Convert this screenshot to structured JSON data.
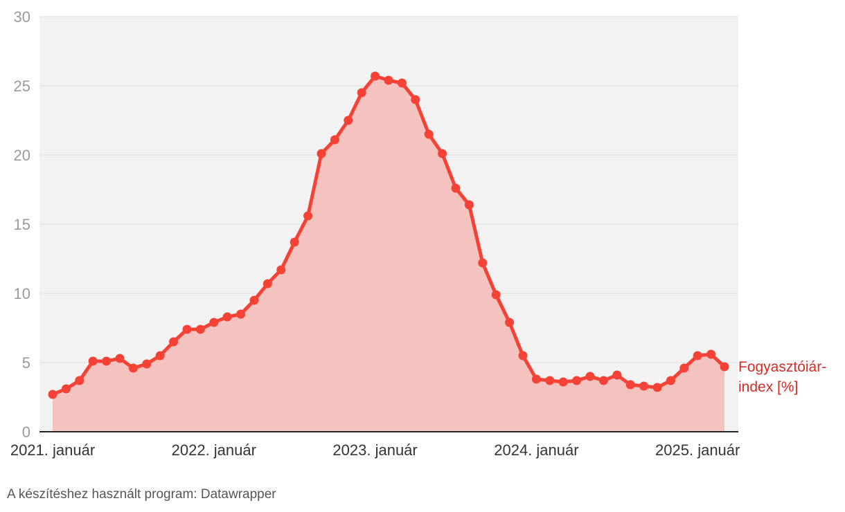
{
  "chart_data": {
    "type": "area",
    "title": "",
    "xlabel": "",
    "ylabel": "",
    "ylim": [
      0,
      30
    ],
    "y_ticks": [
      "0",
      "5",
      "10",
      "15",
      "20",
      "25",
      "30"
    ],
    "x_ticks": [
      "2021. január",
      "2022. január",
      "2023. január",
      "2024. január",
      "2025. január"
    ],
    "grid": true,
    "series": [
      {
        "name": "Fogyasztóiár-index [%]",
        "label_lines": [
          "Fogyasztóiár-",
          "index [%]"
        ],
        "start": "2021-01",
        "values": [
          2.7,
          3.1,
          3.7,
          5.1,
          5.1,
          5.3,
          4.6,
          4.9,
          5.5,
          6.5,
          7.4,
          7.4,
          7.9,
          8.3,
          8.5,
          9.5,
          10.7,
          11.7,
          13.7,
          15.6,
          20.1,
          21.1,
          22.5,
          24.5,
          25.7,
          25.4,
          25.2,
          24.0,
          21.5,
          20.1,
          17.6,
          16.4,
          12.2,
          9.9,
          7.9,
          5.5,
          3.8,
          3.7,
          3.6,
          3.7,
          4.0,
          3.7,
          4.1,
          3.4,
          3.3,
          3.2,
          3.7,
          4.6,
          5.5,
          5.6,
          4.7
        ]
      }
    ]
  },
  "colors": {
    "line": "#f44336",
    "area": "#f4c2bf",
    "plot_background": "#f2f2f2",
    "gridline": "#e0e0e0",
    "label": "#d92a25"
  },
  "footer": "A készítéshez használt program: Datawrapper"
}
